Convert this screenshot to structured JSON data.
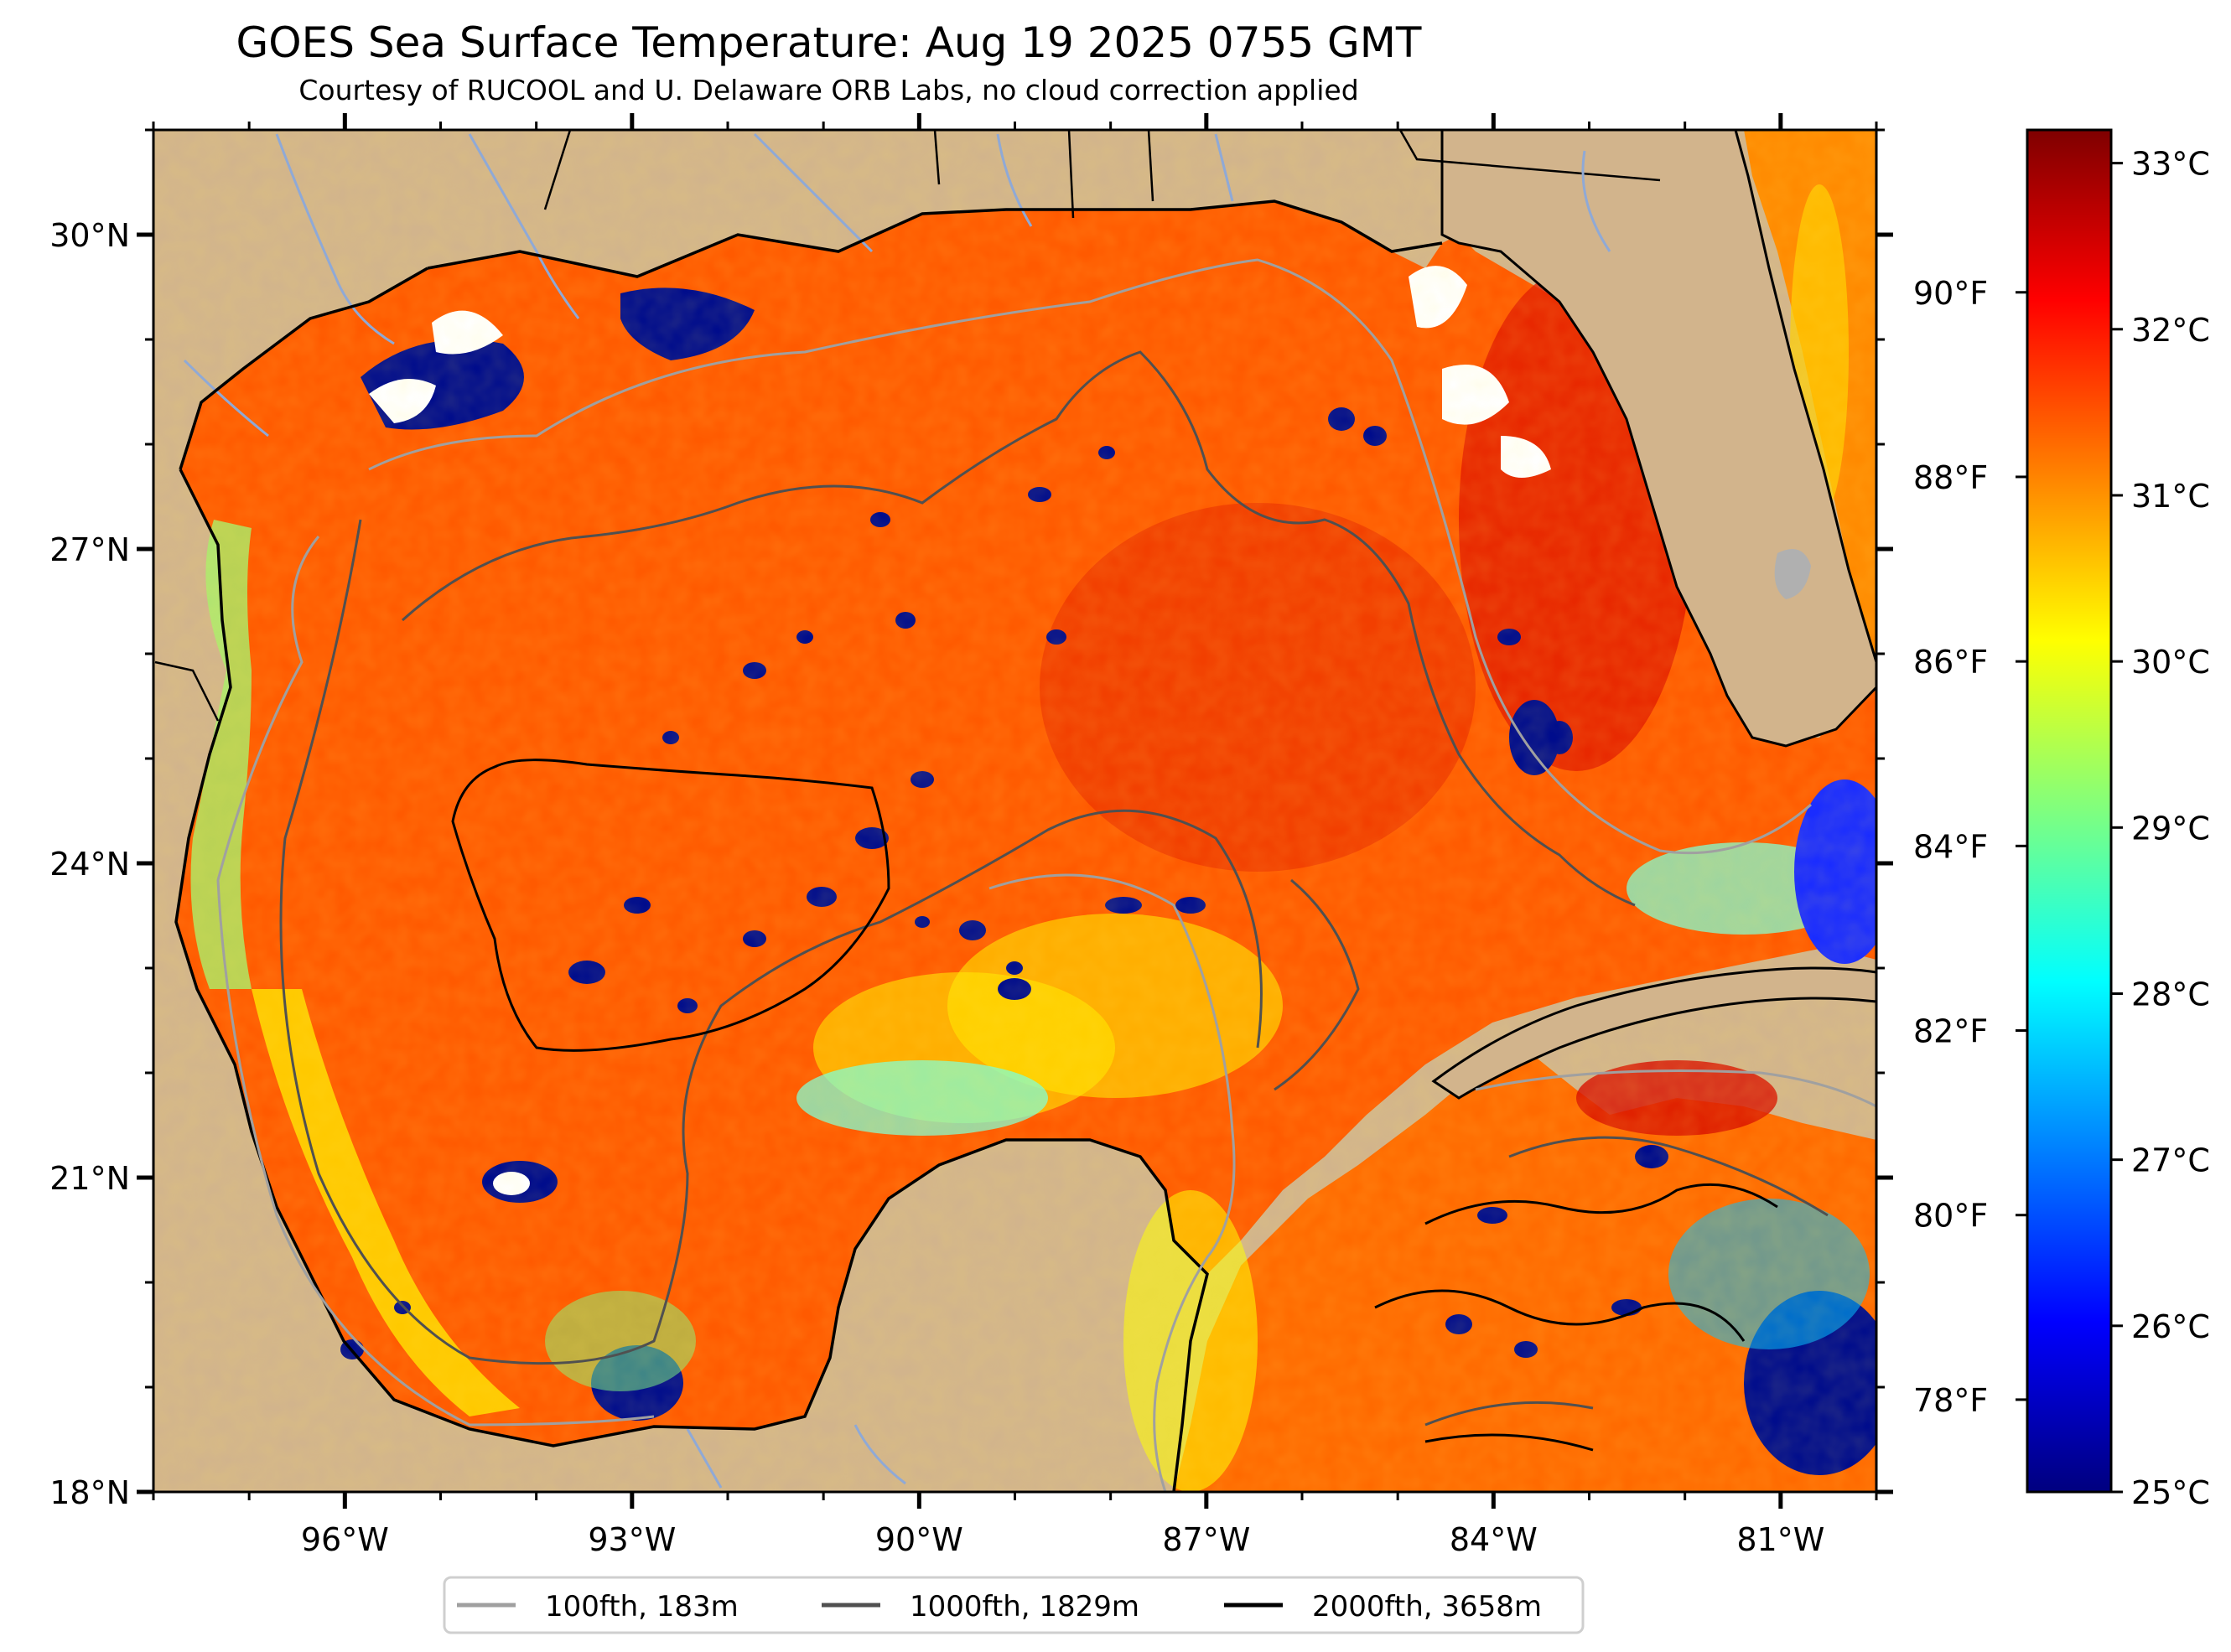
{
  "title": "GOES Sea Surface Temperature: Aug 19 2025 0755 GMT",
  "subtitle": "Courtesy of RUCOOL and U. Delaware ORB Labs, no cloud correction applied",
  "colors": {
    "land": "#d2b48c",
    "warm_sea": "#ff5a00",
    "hot_sea": "#e01800",
    "cool_sea": "#ffd200",
    "shelf_water": "#a8f06a",
    "cloud_gap": "#ffffff",
    "cold_pixels": "#000c8c",
    "contour_100": "#a0a0a0",
    "contour_1000": "#505050",
    "contour_2000": "#000000",
    "river": "#8fa9d6"
  },
  "map": {
    "lon_range": [
      -98,
      -80
    ],
    "lat_range": [
      18,
      31
    ],
    "lat_ticks": [
      {
        "value": 30,
        "label": "30°N"
      },
      {
        "value": 27,
        "label": "27°N"
      },
      {
        "value": 24,
        "label": "24°N"
      },
      {
        "value": 21,
        "label": "21°N"
      },
      {
        "value": 18,
        "label": "18°N"
      }
    ],
    "lon_ticks": [
      {
        "value": -96,
        "label": "96°W"
      },
      {
        "value": -93,
        "label": "93°W"
      },
      {
        "value": -90,
        "label": "90°W"
      },
      {
        "value": -87,
        "label": "87°W"
      },
      {
        "value": -84,
        "label": "84°W"
      },
      {
        "value": -81,
        "label": "81°W"
      }
    ],
    "right_labels": [
      {
        "value": 90,
        "label": "90°F"
      },
      {
        "value": 88,
        "label": "88°F"
      },
      {
        "value": 86,
        "label": "86°F"
      },
      {
        "value": 84,
        "label": "84°F"
      },
      {
        "value": 82,
        "label": "82°F"
      },
      {
        "value": 80,
        "label": "80°F"
      },
      {
        "value": 78,
        "label": "78°F"
      }
    ]
  },
  "colorbar": {
    "range_c": [
      25,
      33.2
    ],
    "stops": [
      "#00007f",
      "#0000ff",
      "#007fff",
      "#00ffff",
      "#7fff7f",
      "#ffff00",
      "#ff7f00",
      "#ff0000",
      "#7f0000"
    ],
    "ticks": [
      {
        "value": 33,
        "label": "33°C"
      },
      {
        "value": 32,
        "label": "32°C"
      },
      {
        "value": 31,
        "label": "31°C"
      },
      {
        "value": 30,
        "label": "30°C"
      },
      {
        "value": 29,
        "label": "29°C"
      },
      {
        "value": 28,
        "label": "28°C"
      },
      {
        "value": 27,
        "label": "27°C"
      },
      {
        "value": 26,
        "label": "26°C"
      },
      {
        "value": 25,
        "label": "25°C"
      }
    ]
  },
  "legend": [
    {
      "label": "100fth, 183m",
      "color": "#a0a0a0"
    },
    {
      "label": "1000fth, 1829m",
      "color": "#505050"
    },
    {
      "label": "2000fth, 3658m",
      "color": "#000000"
    }
  ]
}
